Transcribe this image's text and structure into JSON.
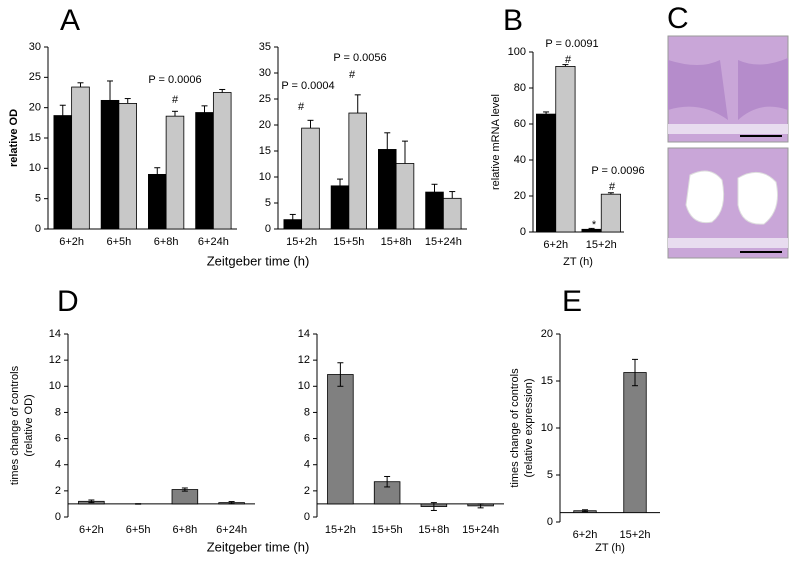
{
  "panel_labels": [
    "A",
    "B",
    "C",
    "D",
    "E"
  ],
  "chart_data": [
    {
      "type": "bar",
      "categories": [
        "6+2h",
        "6+5h",
        "6+8h",
        "6+24h"
      ],
      "series": [
        {
          "color": "#000000",
          "values": [
            18.7,
            21.2,
            9,
            19.2
          ],
          "errors": [
            1.7,
            3.2,
            1.1,
            1.1
          ]
        },
        {
          "color": "#c8c8c8",
          "values": [
            23.4,
            20.7,
            18.6,
            22.5
          ],
          "errors": [
            0.7,
            0.8,
            0.8,
            0.5
          ]
        }
      ],
      "ylim": [
        0,
        30
      ],
      "yticks": [
        0,
        5,
        10,
        15,
        20,
        25,
        30
      ],
      "ylabel": [
        "relative OD"
      ],
      "xlabel": "Zeitgeber time (h)",
      "error_bars": "upper",
      "annotations": [
        "P = 0.0006",
        "#"
      ]
    },
    {
      "type": "bar",
      "categories": [
        "15+2h",
        "15+5h",
        "15+8h",
        "15+24h"
      ],
      "series": [
        {
          "color": "#000000",
          "values": [
            1.8,
            8.3,
            15.3,
            7.1
          ],
          "errors": [
            1.0,
            1.3,
            3.2,
            1.5
          ]
        },
        {
          "color": "#c8c8c8",
          "values": [
            19.4,
            22.3,
            12.6,
            5.9
          ],
          "errors": [
            1.5,
            3.5,
            4.3,
            1.3
          ]
        }
      ],
      "ylim": [
        0,
        35
      ],
      "yticks": [
        0,
        5,
        10,
        15,
        20,
        25,
        30,
        35
      ],
      "error_bars": "upper",
      "annotations": [
        "P = 0.0004",
        "#",
        "P = 0.0056",
        "#"
      ]
    },
    {
      "type": "bar",
      "categories": [
        "6+2h",
        "15+2h"
      ],
      "series": [
        {
          "color": "#000000",
          "values": [
            65.5,
            1.5
          ],
          "errors": [
            1.2,
            0.5
          ]
        },
        {
          "color": "#c8c8c8",
          "values": [
            92,
            21
          ],
          "errors": [
            1,
            0.8
          ]
        }
      ],
      "ylim": [
        0,
        100
      ],
      "yticks": [
        0,
        20,
        40,
        60,
        80,
        100
      ],
      "ylabel": [
        "relative mRNA level"
      ],
      "xlabel": "ZT (h)",
      "error_bars": "upper",
      "annotations": [
        "P = 0.0091",
        "#",
        "P = 0.0096",
        "#",
        "*"
      ]
    },
    {
      "type": "bar",
      "categories": [
        "6+2h",
        "6+5h",
        "6+8h",
        "6+24h"
      ],
      "series": [
        {
          "color": "#808080",
          "values": [
            1.2,
            1.0,
            2.1,
            1.1
          ],
          "errors": [
            0.1,
            0.02,
            0.12,
            0.08
          ]
        }
      ],
      "ylim": [
        0,
        14
      ],
      "yticks": [
        0,
        2,
        4,
        6,
        8,
        10,
        12,
        14
      ],
      "baseline": 1,
      "ylabel": [
        "times change of controls",
        "(relative OD)"
      ],
      "xlabel": "Zeitgeber time (h)",
      "error_bars": "both"
    },
    {
      "type": "bar",
      "categories": [
        "15+2h",
        "15+5h",
        "15+8h",
        "15+24h"
      ],
      "series": [
        {
          "color": "#808080",
          "values": [
            10.9,
            2.7,
            0.8,
            0.85
          ],
          "errors": [
            0.9,
            0.4,
            0.3,
            0.15
          ]
        }
      ],
      "ylim": [
        0,
        14
      ],
      "yticks": [
        0,
        2,
        4,
        6,
        8,
        10,
        12,
        14
      ],
      "baseline": 1,
      "error_bars": "both"
    },
    {
      "type": "bar",
      "categories": [
        "6+2h",
        "15+2h"
      ],
      "series": [
        {
          "color": "#808080",
          "values": [
            1.2,
            15.9
          ],
          "errors": [
            0.1,
            1.4
          ]
        }
      ],
      "ylim": [
        0,
        20
      ],
      "yticks": [
        0,
        5,
        10,
        15,
        20
      ],
      "baseline": 1,
      "ylabel": [
        "times change of controls",
        "(relative expression)"
      ],
      "xlabel": "ZT (h)",
      "error_bars": "both"
    }
  ]
}
